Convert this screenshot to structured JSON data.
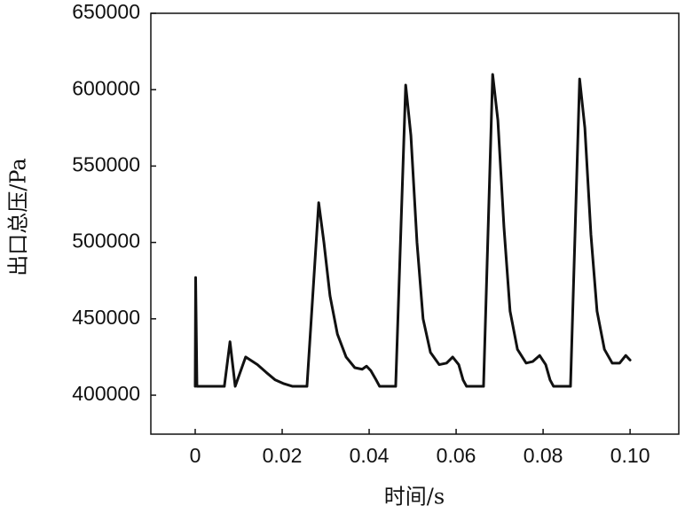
{
  "chart_data": {
    "type": "line",
    "x_label": "时间/s",
    "y_label": "出口总压/Pa",
    "x": [
      0,
      0.0001,
      0.0004,
      0.0067,
      0.008,
      0.0092,
      0.0116,
      0.0143,
      0.0163,
      0.0184,
      0.0204,
      0.0224,
      0.0257,
      0.0284,
      0.0296,
      0.031,
      0.0327,
      0.0347,
      0.0367,
      0.0384,
      0.0394,
      0.0404,
      0.0416,
      0.0424,
      0.0461,
      0.0484,
      0.0496,
      0.051,
      0.0524,
      0.0541,
      0.0561,
      0.0578,
      0.0592,
      0.0606,
      0.0616,
      0.0624,
      0.0663,
      0.0684,
      0.0696,
      0.071,
      0.0724,
      0.0741,
      0.0761,
      0.0776,
      0.0792,
      0.0806,
      0.0816,
      0.0824,
      0.0863,
      0.0884,
      0.0896,
      0.091,
      0.0924,
      0.0941,
      0.0959,
      0.0976,
      0.099,
      0.1
    ],
    "values": [
      405800,
      477000,
      405800,
      405800,
      435000,
      405800,
      425000,
      420000,
      415000,
      410000,
      407500,
      405800,
      405800,
      526000,
      500000,
      465000,
      440000,
      425000,
      418000,
      417000,
      419000,
      416000,
      410000,
      405800,
      405800,
      603000,
      570000,
      500000,
      450000,
      428000,
      420000,
      421000,
      425000,
      420000,
      410000,
      405800,
      405800,
      610000,
      580000,
      510000,
      455000,
      430000,
      421000,
      422000,
      426000,
      420000,
      410000,
      405800,
      405800,
      607000,
      575000,
      505000,
      455000,
      430000,
      421000,
      421000,
      426000,
      423000
    ],
    "color": "#111111",
    "xlim": [
      -0.0102,
      0.1112
    ],
    "xticks": [
      0,
      0.02,
      0.04,
      0.06,
      0.08,
      {
        "value": 0.1,
        "label": "0.10"
      }
    ],
    "ylim": [
      374500,
      650000
    ],
    "yticks": [
      400000,
      450000,
      500000,
      550000,
      600000,
      650000
    ],
    "grid": false
  }
}
